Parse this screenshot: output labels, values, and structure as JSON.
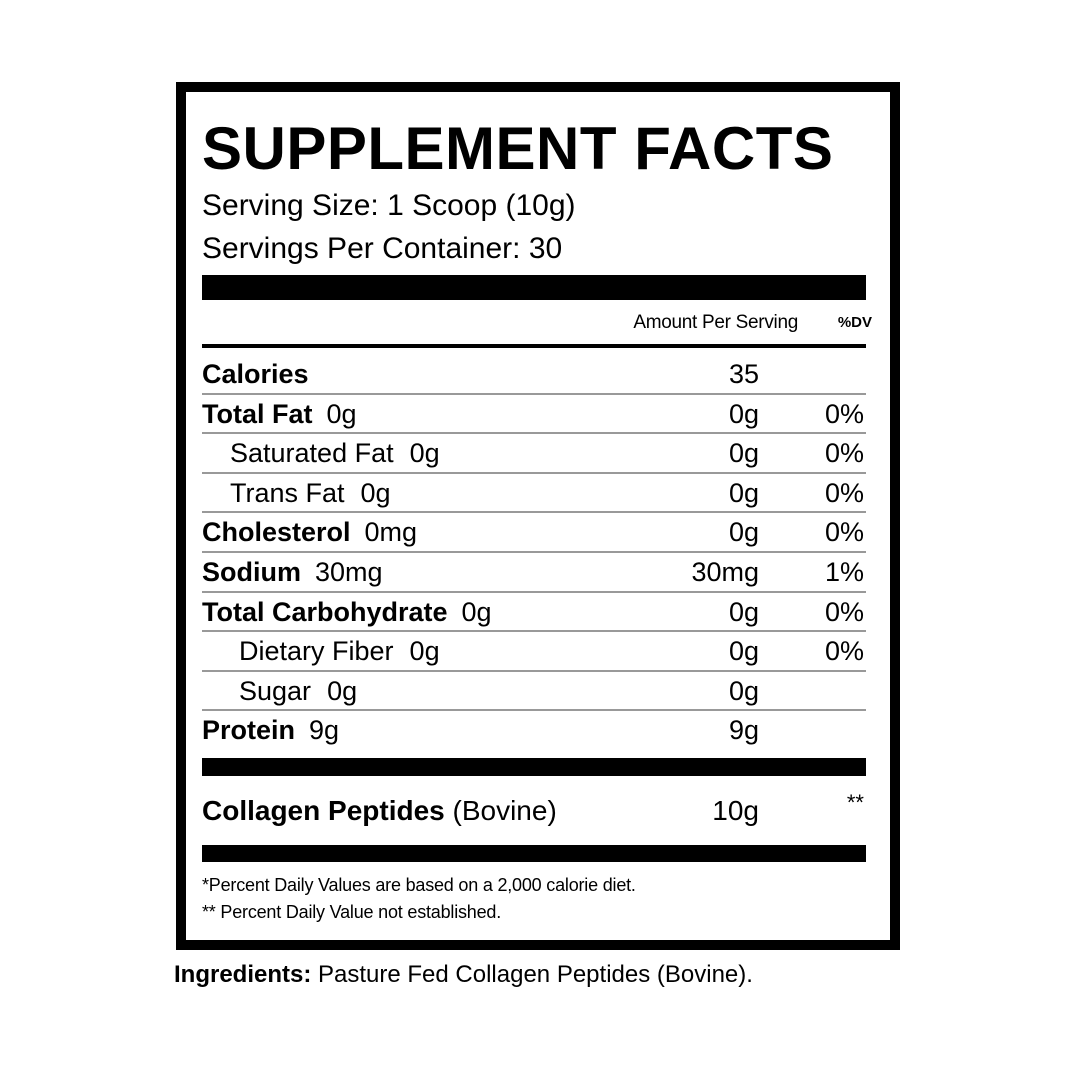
{
  "title": "SUPPLEMENT FACTS",
  "serving_size": "Serving Size: 1 Scoop (10g)",
  "servings_per_container": "Servings Per Container: 30",
  "header": {
    "amount": "Amount Per Serving",
    "dv": "%DV"
  },
  "rows": [
    {
      "name": "Calories",
      "qty": "",
      "amount": "35",
      "dv": "",
      "bold": true,
      "indent": 0
    },
    {
      "name": "Total Fat",
      "qty": "0g",
      "amount": "0g",
      "dv": "0%",
      "bold": true,
      "indent": 0
    },
    {
      "name": "Saturated Fat",
      "qty": "0g",
      "amount": "0g",
      "dv": "0%",
      "bold": false,
      "indent": 1
    },
    {
      "name": "Trans Fat",
      "qty": "0g",
      "amount": "0g",
      "dv": "0%",
      "bold": false,
      "indent": 1
    },
    {
      "name": "Cholesterol",
      "qty": "0mg",
      "amount": "0g",
      "dv": "0%",
      "bold": true,
      "indent": 0
    },
    {
      "name": "Sodium",
      "qty": "30mg",
      "amount": "30mg",
      "dv": "1%",
      "bold": true,
      "indent": 0
    },
    {
      "name": "Total Carbohydrate",
      "qty": "0g",
      "amount": "0g",
      "dv": "0%",
      "bold": true,
      "indent": 0
    },
    {
      "name": "Dietary Fiber",
      "qty": "0g",
      "amount": "0g",
      "dv": "0%",
      "bold": false,
      "indent": 2
    },
    {
      "name": "Sugar",
      "qty": "0g",
      "amount": "0g",
      "dv": "",
      "bold": false,
      "indent": 2
    },
    {
      "name": "Protein",
      "qty": "9g",
      "amount": "9g",
      "dv": "",
      "bold": true,
      "indent": 0
    }
  ],
  "collagen": {
    "name": "Collagen Peptides",
    "source": "(Bovine)",
    "amount": "10g",
    "dv": "**"
  },
  "footnotes": [
    "*Percent Daily Values are based on a 2,000 calorie diet.",
    "** Percent Daily Value not established."
  ],
  "ingredients": {
    "label": "Ingredients:",
    "text": "Pasture Fed Collagen Peptides (Bovine)."
  }
}
